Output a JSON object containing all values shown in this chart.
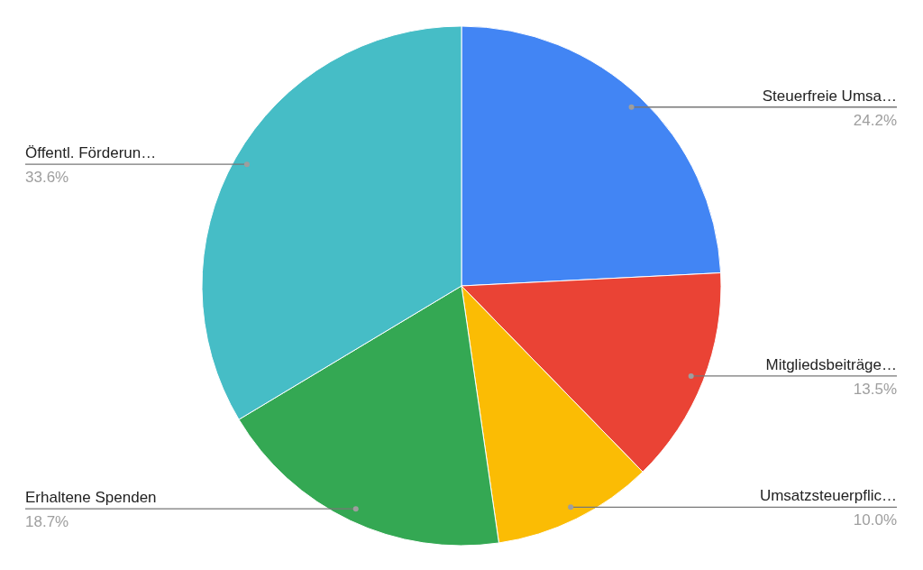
{
  "chart_data": {
    "type": "pie",
    "categories": [
      "Steuerfreie Umsa…",
      "Mitgliedsbeiträge…",
      "Umsatzsteuerpflic…",
      "Erhaltene Spenden",
      "Öffentl. Förderun…"
    ],
    "values": [
      24.2,
      13.5,
      10.0,
      18.7,
      33.6
    ],
    "colors": [
      "#4285f4",
      "#ea4335",
      "#fbbc04",
      "#34a853",
      "#46bdc6"
    ],
    "value_labels": [
      "24.2%",
      "13.5%",
      "10.0%",
      "18.7%",
      "33.6%"
    ]
  }
}
